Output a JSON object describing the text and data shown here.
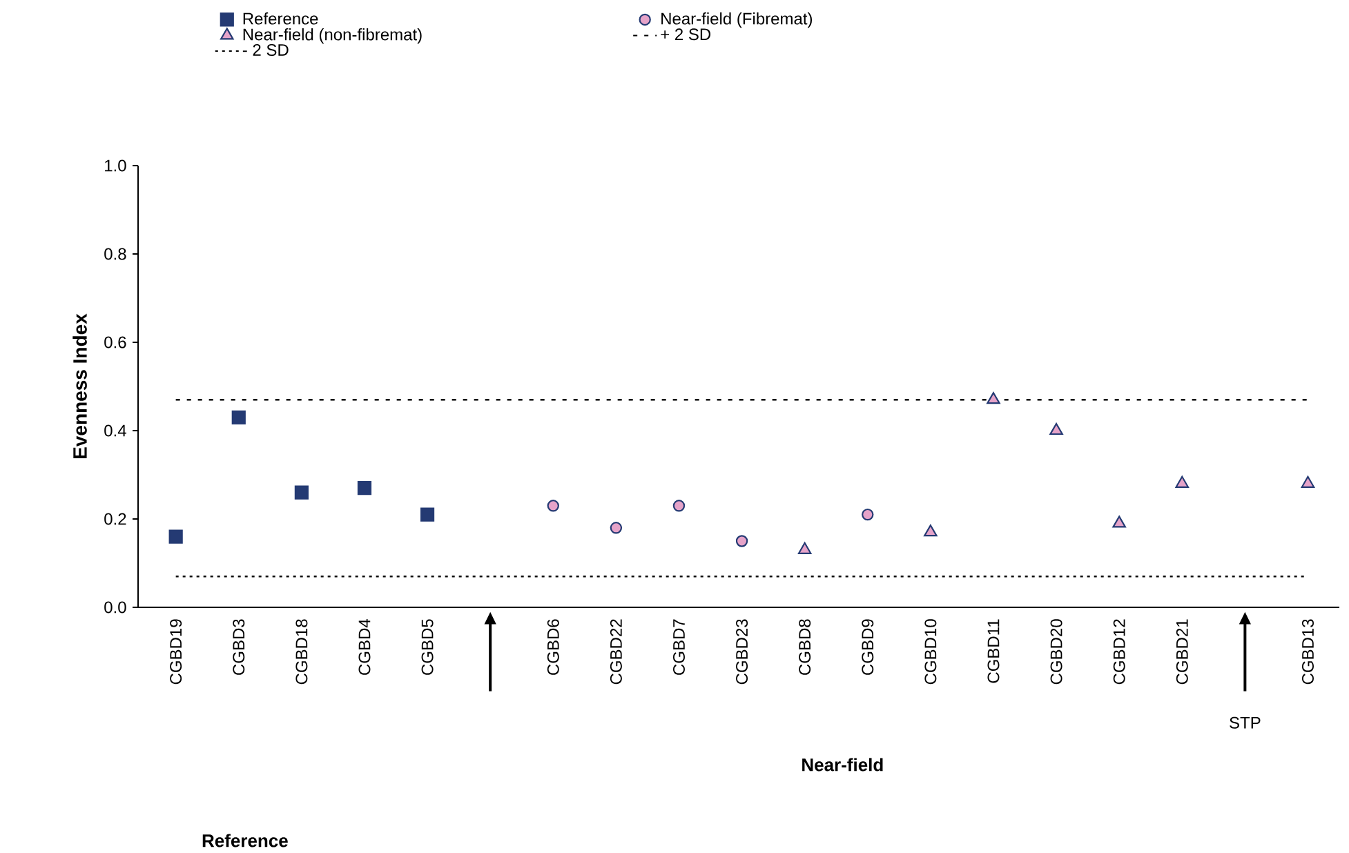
{
  "chart_data": {
    "type": "scatter",
    "ylabel": "Evenness Index",
    "xlabel": "Near-field",
    "categories": [
      "CGBD19",
      "CGBD3",
      "CGBD18",
      "CGBD4",
      "CGBD5",
      null,
      "CGBD6",
      "CGBD22",
      "CGBD7",
      "CGBD23",
      "CGBD8",
      "CGBD9",
      "CGBD10",
      "CGBD11",
      "CGBD20",
      "CGBD12",
      "CGBD21",
      null,
      "CGBD13"
    ],
    "series": [
      {
        "name": "Reference",
        "color": "#243a73",
        "marker": "square",
        "values": [
          0.16,
          0.43,
          0.26,
          0.27,
          0.21,
          null,
          null,
          null,
          null,
          null,
          null,
          null,
          null,
          null,
          null,
          null,
          null,
          null,
          null
        ]
      },
      {
        "name": "Near-field (Fibremat)",
        "color": "#e6a3c9",
        "marker": "circle",
        "values": [
          null,
          null,
          null,
          null,
          null,
          null,
          0.23,
          0.18,
          0.23,
          0.15,
          null,
          0.21,
          null,
          null,
          null,
          null,
          null,
          null,
          null
        ]
      },
      {
        "name": "Near-field (non-fibremat)",
        "color": "#e6a3c9",
        "marker": "triangle",
        "values": [
          null,
          null,
          null,
          null,
          null,
          null,
          null,
          null,
          null,
          null,
          0.13,
          null,
          0.17,
          0.47,
          0.4,
          0.19,
          0.28,
          null,
          0.28
        ]
      }
    ],
    "ref_lines": [
      {
        "axis": "y",
        "value": 0.47,
        "label": "+ 2 SD",
        "line_style": "dashed"
      },
      {
        "axis": "y",
        "value": 0.07,
        "label": "- 2 SD",
        "line_style": "dotted"
      }
    ],
    "annotations": [
      "STP",
      "Reference"
    ],
    "ylim": [
      0,
      1.0
    ],
    "yticks": [
      {
        "value": 0,
        "label": "0.0"
      },
      {
        "value": 0.2,
        "label": "0.2"
      },
      {
        "value": 0.4,
        "label": "0.4"
      },
      {
        "value": 0.6,
        "label": "0.6"
      },
      {
        "value": 0.8,
        "label": "0.8"
      },
      {
        "value": 1.0,
        "label": "1.0"
      }
    ],
    "grid": false,
    "legend": "top"
  }
}
